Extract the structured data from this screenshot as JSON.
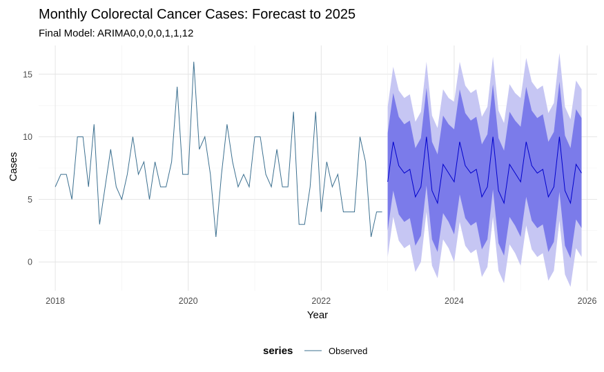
{
  "chart_data": {
    "type": "line",
    "title": "Monthly Colorectal Cancer Cases: Forecast to 2025",
    "subtitle": "Final Model: ARIMA0,0,0,0,1,1,12",
    "xlabel": "Year",
    "ylabel": "Cases",
    "xlim": [
      2017.75,
      2026.15
    ],
    "ylim": [
      -2.3,
      17.3
    ],
    "x_ticks": [
      2018,
      2020,
      2022,
      2024,
      2026
    ],
    "x_tick_labels": [
      "2018",
      "2020",
      "2022",
      "2024",
      "2026"
    ],
    "y_ticks": [
      0,
      5,
      10,
      15
    ],
    "y_tick_labels": [
      "0",
      "5",
      "10",
      "15"
    ],
    "grid": true,
    "legend": {
      "title": "series",
      "position": "bottom",
      "entries": [
        "Observed"
      ]
    },
    "observed": {
      "name": "Observed",
      "color": "#3b6f8f",
      "start": [
        2018,
        1
      ],
      "frequency": 12,
      "values": [
        6,
        7,
        7,
        5,
        10,
        10,
        6,
        11,
        3,
        6,
        9,
        6,
        5,
        7,
        10,
        7,
        8,
        5,
        8,
        6,
        6,
        8,
        14,
        7,
        7,
        16,
        9,
        10,
        7,
        2,
        7,
        11,
        8,
        6,
        7,
        6,
        10,
        10,
        7,
        6,
        9,
        6,
        6,
        12,
        3,
        3,
        6,
        12,
        4,
        8,
        6,
        7,
        4,
        4,
        4,
        10,
        8,
        2,
        4,
        4
      ]
    },
    "forecast": {
      "start": [
        2023,
        1
      ],
      "frequency": 12,
      "mean": [
        6.4,
        9.6,
        7.7,
        7.1,
        7.4,
        5.2,
        6.0,
        10.0,
        5.7,
        4.7,
        7.8,
        7.1,
        6.4,
        9.6,
        7.7,
        7.1,
        7.4,
        5.2,
        6.0,
        10.0,
        5.7,
        4.7,
        7.8,
        7.1,
        6.4,
        9.6,
        7.7,
        7.1,
        7.4,
        5.2,
        6.0,
        10.0,
        5.7,
        4.7,
        7.8,
        7.1
      ],
      "lo80": [
        2.5,
        5.7,
        3.8,
        3.2,
        3.5,
        1.3,
        2.1,
        6.1,
        1.8,
        0.8,
        3.9,
        3.2,
        2.2,
        5.4,
        3.5,
        2.9,
        3.2,
        1.0,
        1.8,
        5.8,
        1.5,
        0.5,
        3.6,
        2.9,
        2.0,
        5.2,
        3.3,
        2.7,
        3.0,
        0.8,
        1.6,
        5.6,
        1.3,
        0.3,
        3.4,
        2.7
      ],
      "hi80": [
        10.3,
        13.5,
        11.6,
        11.0,
        11.3,
        9.1,
        9.9,
        13.9,
        9.6,
        8.6,
        11.7,
        11.0,
        10.6,
        13.8,
        11.9,
        11.3,
        11.6,
        9.4,
        10.2,
        14.2,
        9.9,
        8.9,
        12.0,
        11.3,
        10.8,
        14.0,
        12.1,
        11.5,
        11.8,
        9.6,
        10.4,
        14.4,
        10.1,
        9.1,
        12.2,
        11.5
      ],
      "lo95": [
        0.4,
        3.6,
        1.7,
        1.1,
        1.4,
        -0.8,
        0.0,
        4.0,
        -0.3,
        -1.3,
        1.8,
        1.1,
        0.0,
        3.2,
        1.3,
        0.7,
        1.0,
        -1.2,
        -0.4,
        3.6,
        -0.7,
        -1.7,
        1.4,
        0.7,
        -0.3,
        2.9,
        1.0,
        0.4,
        0.7,
        -1.5,
        -0.7,
        3.3,
        -1.0,
        -2.0,
        1.1,
        0.4
      ],
      "hi95": [
        12.4,
        15.6,
        13.7,
        13.1,
        13.4,
        11.2,
        12.0,
        16.0,
        11.7,
        10.7,
        13.8,
        13.1,
        12.8,
        16.0,
        14.1,
        13.5,
        13.8,
        11.6,
        12.4,
        16.4,
        12.1,
        11.1,
        14.2,
        13.5,
        13.1,
        16.3,
        14.4,
        13.8,
        14.1,
        11.9,
        12.7,
        16.7,
        12.4,
        11.4,
        14.5,
        13.8
      ],
      "line_color": "#0000cc",
      "band80_color": "#7b7bea",
      "band95_color": "#c6c6f3"
    }
  }
}
